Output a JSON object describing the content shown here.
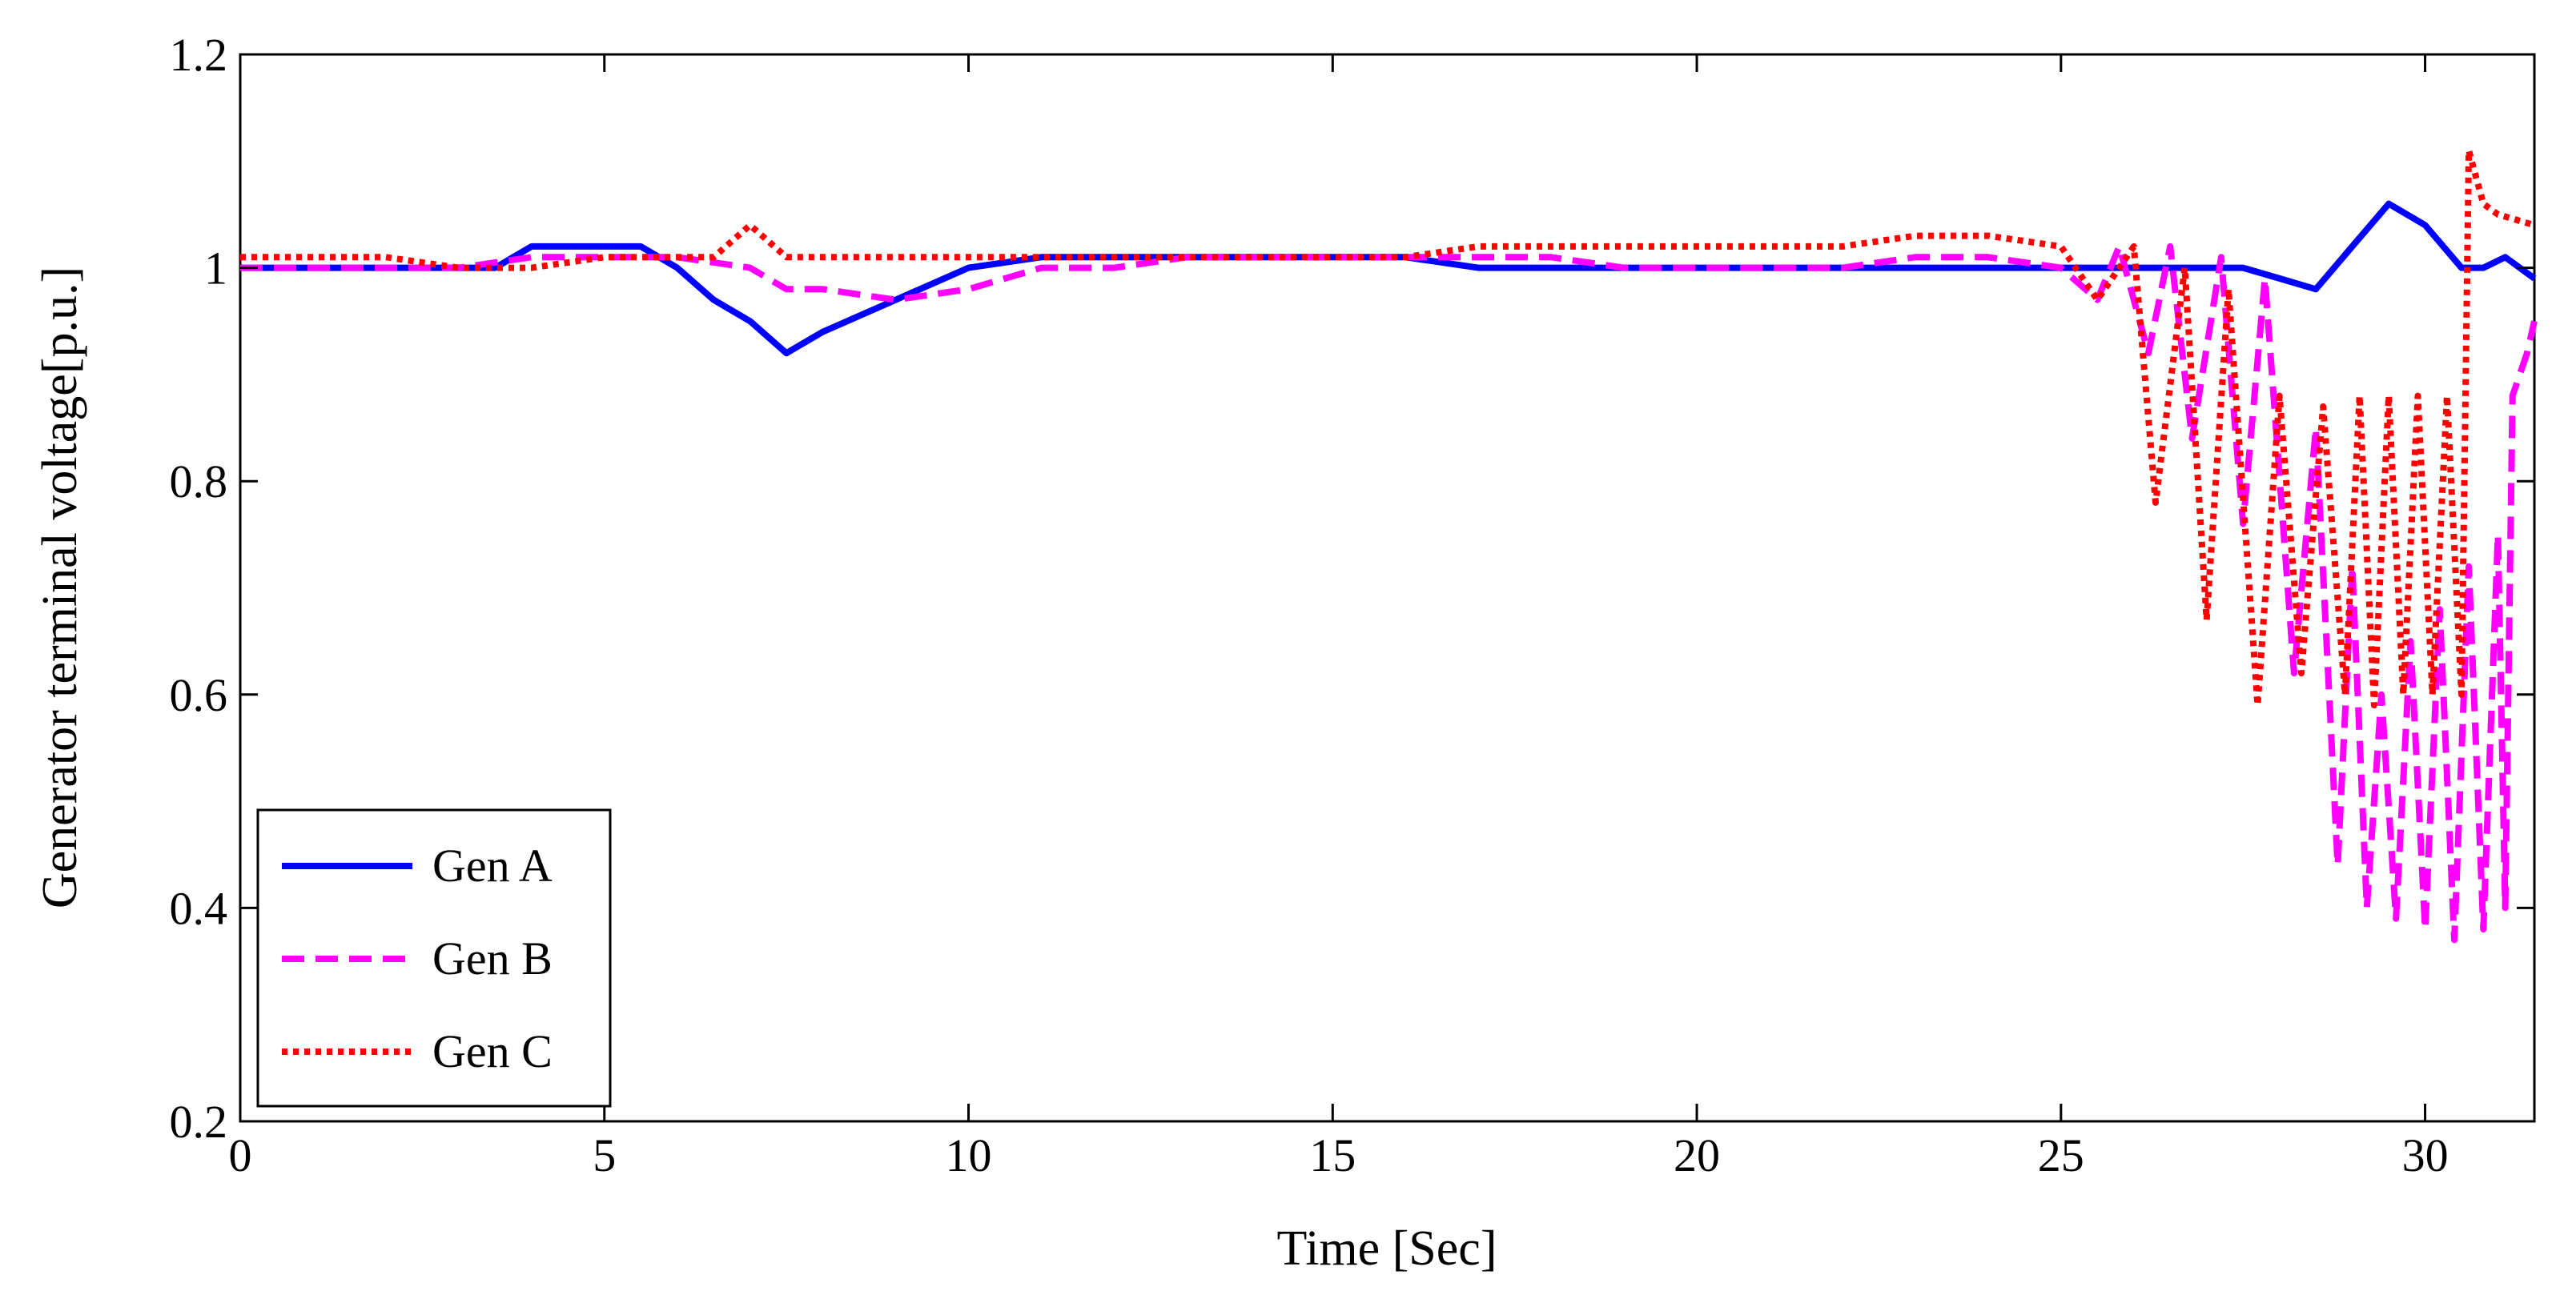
{
  "chart_data": {
    "type": "line",
    "title": "",
    "xlabel": "Time [Sec]",
    "ylabel": "Generator terminal voltage[p.u.]",
    "xlim": [
      0,
      31.5
    ],
    "ylim": [
      0.2,
      1.2
    ],
    "xticks": [
      0,
      5,
      10,
      15,
      20,
      25,
      30
    ],
    "yticks": [
      0.2,
      0.4,
      0.6,
      0.8,
      1,
      1.2
    ],
    "xtick_labels": [
      "0",
      "5",
      "10",
      "15",
      "20",
      "25",
      "30"
    ],
    "ytick_labels": [
      "0.2",
      "0.4",
      "0.6",
      "0.8",
      "1",
      "1.2"
    ],
    "grid": false,
    "legend_position": "bottom-left",
    "series": [
      {
        "name": "Gen A",
        "color": "#0000ff",
        "style": "solid",
        "x": [
          0,
          1,
          2,
          3,
          3.5,
          4,
          4.5,
          5,
          5.5,
          6,
          6.5,
          7,
          7.5,
          8,
          9,
          10,
          11,
          12,
          13,
          14,
          15,
          16,
          17,
          18,
          19,
          20,
          21,
          22,
          23,
          24,
          25,
          26,
          27,
          27.5,
          28,
          28.5,
          29,
          29.5,
          30,
          30.5,
          30.8,
          31.1,
          31.5
        ],
        "y": [
          1.0,
          1.0,
          1.0,
          1.0,
          1.0,
          1.02,
          1.02,
          1.02,
          1.02,
          1.0,
          0.97,
          0.95,
          0.92,
          0.94,
          0.97,
          1.0,
          1.01,
          1.01,
          1.01,
          1.01,
          1.01,
          1.01,
          1.0,
          1.0,
          1.0,
          1.0,
          1.0,
          1.0,
          1.0,
          1.0,
          1.0,
          1.0,
          1.0,
          1.0,
          0.99,
          0.98,
          1.02,
          1.06,
          1.04,
          1.0,
          1.0,
          1.01,
          0.99
        ]
      },
      {
        "name": "Gen B",
        "color": "#ff00ff",
        "style": "dashed",
        "x": [
          0,
          1,
          2,
          3,
          4,
          5,
          6,
          7,
          7.5,
          8,
          9,
          10,
          11,
          12,
          13,
          14,
          15,
          16,
          17,
          18,
          19,
          20,
          21,
          22,
          23,
          24,
          25,
          25.5,
          25.8,
          26.2,
          26.5,
          26.8,
          27.2,
          27.5,
          27.8,
          28.2,
          28.5,
          28.8,
          29.0,
          29.2,
          29.4,
          29.6,
          29.8,
          30.0,
          30.2,
          30.4,
          30.6,
          30.8,
          31.0,
          31.1,
          31.2,
          31.4,
          31.5
        ],
        "y": [
          1.0,
          1.0,
          1.0,
          1.0,
          1.01,
          1.01,
          1.01,
          1.0,
          0.98,
          0.98,
          0.97,
          0.98,
          1.0,
          1.0,
          1.01,
          1.01,
          1.01,
          1.01,
          1.01,
          1.01,
          1.0,
          1.0,
          1.0,
          1.0,
          1.01,
          1.01,
          1.0,
          0.97,
          1.02,
          0.92,
          1.02,
          0.84,
          1.01,
          0.76,
          0.99,
          0.62,
          0.85,
          0.44,
          0.72,
          0.4,
          0.6,
          0.39,
          0.65,
          0.38,
          0.68,
          0.37,
          0.72,
          0.38,
          0.75,
          0.4,
          0.88,
          0.92,
          0.95
        ]
      },
      {
        "name": "Gen C",
        "color": "#ff0000",
        "style": "dotted",
        "x": [
          0,
          1,
          2,
          3,
          4,
          5,
          6,
          6.5,
          7,
          7.5,
          8,
          9,
          10,
          11,
          12,
          13,
          14,
          15,
          16,
          17,
          18,
          19,
          20,
          21,
          22,
          23,
          24,
          25,
          25.5,
          26,
          26.3,
          26.7,
          27,
          27.3,
          27.7,
          28,
          28.3,
          28.6,
          28.9,
          29.1,
          29.3,
          29.5,
          29.7,
          29.9,
          30.1,
          30.3,
          30.5,
          30.6,
          30.8,
          31.0,
          31.5
        ],
        "y": [
          1.01,
          1.01,
          1.01,
          1.0,
          1.0,
          1.01,
          1.01,
          1.01,
          1.04,
          1.01,
          1.01,
          1.01,
          1.01,
          1.01,
          1.01,
          1.01,
          1.01,
          1.01,
          1.01,
          1.02,
          1.02,
          1.02,
          1.02,
          1.02,
          1.02,
          1.03,
          1.03,
          1.02,
          0.97,
          1.02,
          0.78,
          1.0,
          0.67,
          0.98,
          0.59,
          0.88,
          0.62,
          0.87,
          0.6,
          0.88,
          0.59,
          0.88,
          0.6,
          0.88,
          0.6,
          0.88,
          0.6,
          1.11,
          1.06,
          1.05,
          1.04
        ]
      }
    ]
  }
}
